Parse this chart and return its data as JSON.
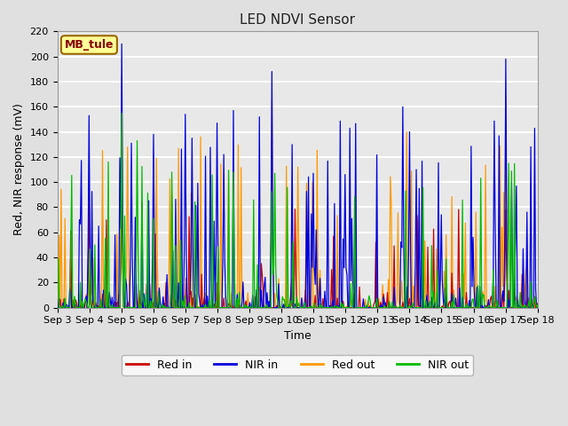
{
  "title": "LED NDVI Sensor",
  "xlabel": "Time",
  "ylabel": "Red, NIR response (mV)",
  "ylim": [
    0,
    220
  ],
  "annotation": "MB_tule",
  "legend": [
    "Red in",
    "NIR in",
    "Red out",
    "NIR out"
  ],
  "line_colors": [
    "#cc0000",
    "#0000dd",
    "#ff9900",
    "#00bb00"
  ],
  "fig_bg_color": "#e0e0e0",
  "plot_bg_color": "#e8e8e8",
  "grid_color": "#ffffff",
  "annotation_bg": "#ffff99",
  "annotation_border": "#996600",
  "annotation_text_color": "#880000",
  "x_tick_labels": [
    "Sep 3",
    "Sep 4",
    "Sep 5",
    "Sep 6",
    "Sep 7",
    "Sep 8",
    "Sep 9",
    "Sep 10",
    "Sep 11",
    "Sep 12",
    "Sep 13",
    "Sep 14",
    "Sep 15",
    "Sep 16",
    "Sep 17",
    "Sep 18"
  ],
  "yticks": [
    0,
    20,
    40,
    60,
    80,
    100,
    120,
    140,
    160,
    180,
    200,
    220
  ],
  "n_points": 500
}
